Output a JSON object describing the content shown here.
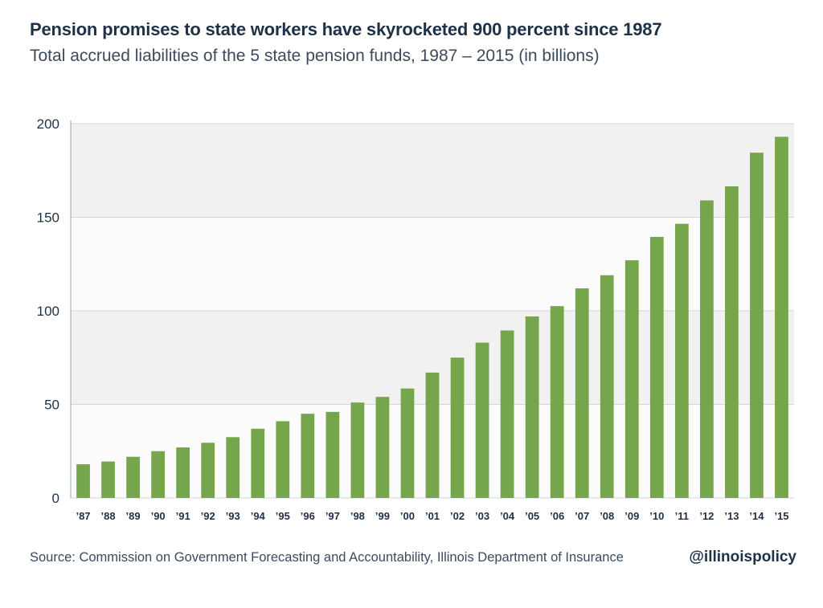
{
  "header": {
    "title": "Pension promises to state workers have skyrocketed 900 percent since 1987",
    "subtitle": "Total accrued liabilities of the 5 state pension funds, 1987 – 2015 (in billions)"
  },
  "footer": {
    "source": "Source: Commission on Government Forecasting and Accountability, Illinois Department of Insurance",
    "handle": "@illinoispolicy"
  },
  "colors": {
    "bar": "#76a64c",
    "band": "#f1f1f1",
    "gridline": "#d6d6d6",
    "axis_text": "#1f3147"
  },
  "chart_data": {
    "type": "bar",
    "categories": [
      "’87",
      "’88",
      "’89",
      "’90",
      "’91",
      "’92",
      "’93",
      "’94",
      "’95",
      "’96",
      "’97",
      "’98",
      "’99",
      "’00",
      "’01",
      "’02",
      "’03",
      "’04",
      "’05",
      "’06",
      "’07",
      "’08",
      "’09",
      "’10",
      "’11",
      "’12",
      "’13",
      "’14",
      "’15"
    ],
    "values": [
      18,
      19.5,
      22,
      25,
      27,
      29.5,
      32.5,
      37,
      41,
      45,
      46,
      51,
      54,
      58.5,
      67,
      75,
      83,
      89.5,
      97,
      102.5,
      112,
      119,
      127,
      139.5,
      146.5,
      159,
      166.5,
      184.5,
      193
    ],
    "yticks": [
      0,
      50,
      100,
      150,
      200
    ],
    "ylim": [
      0,
      200
    ],
    "grid": true,
    "legend": "none"
  }
}
